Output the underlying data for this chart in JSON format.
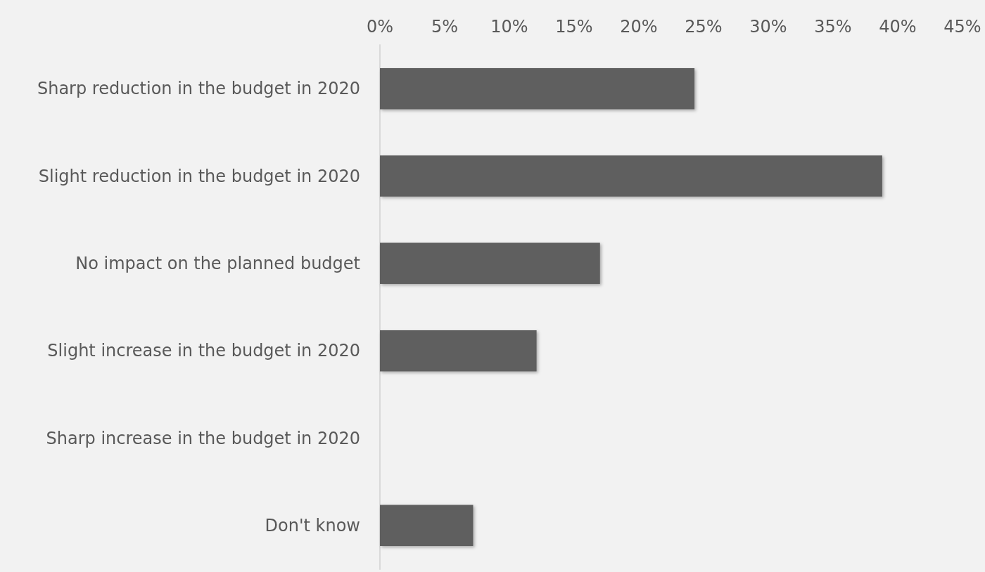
{
  "chart_data": {
    "type": "bar",
    "orientation": "horizontal",
    "categories": [
      "Sharp reduction in the budget in 2020",
      "Slight reduction in the budget in 2020",
      "No impact on the planned budget",
      "Slight increase in the budget in 2020",
      "Sharp increase in the budget in 2020",
      "Don't know"
    ],
    "values": [
      24.3,
      38.8,
      17,
      12.1,
      0,
      7.2
    ],
    "color": "#5f5f5f",
    "xlim": [
      0,
      45
    ],
    "xticks": [
      {
        "value": 0,
        "label": "0%"
      },
      {
        "value": 5,
        "label": "5%"
      },
      {
        "value": 10,
        "label": "10%"
      },
      {
        "value": 15,
        "label": "15%"
      },
      {
        "value": 20,
        "label": "20%"
      },
      {
        "value": 25,
        "label": "25%"
      },
      {
        "value": 30,
        "label": "30%"
      },
      {
        "value": 35,
        "label": "35%"
      },
      {
        "value": 40,
        "label": "40%"
      },
      {
        "value": 45,
        "label": "45%"
      }
    ],
    "grid": false
  }
}
